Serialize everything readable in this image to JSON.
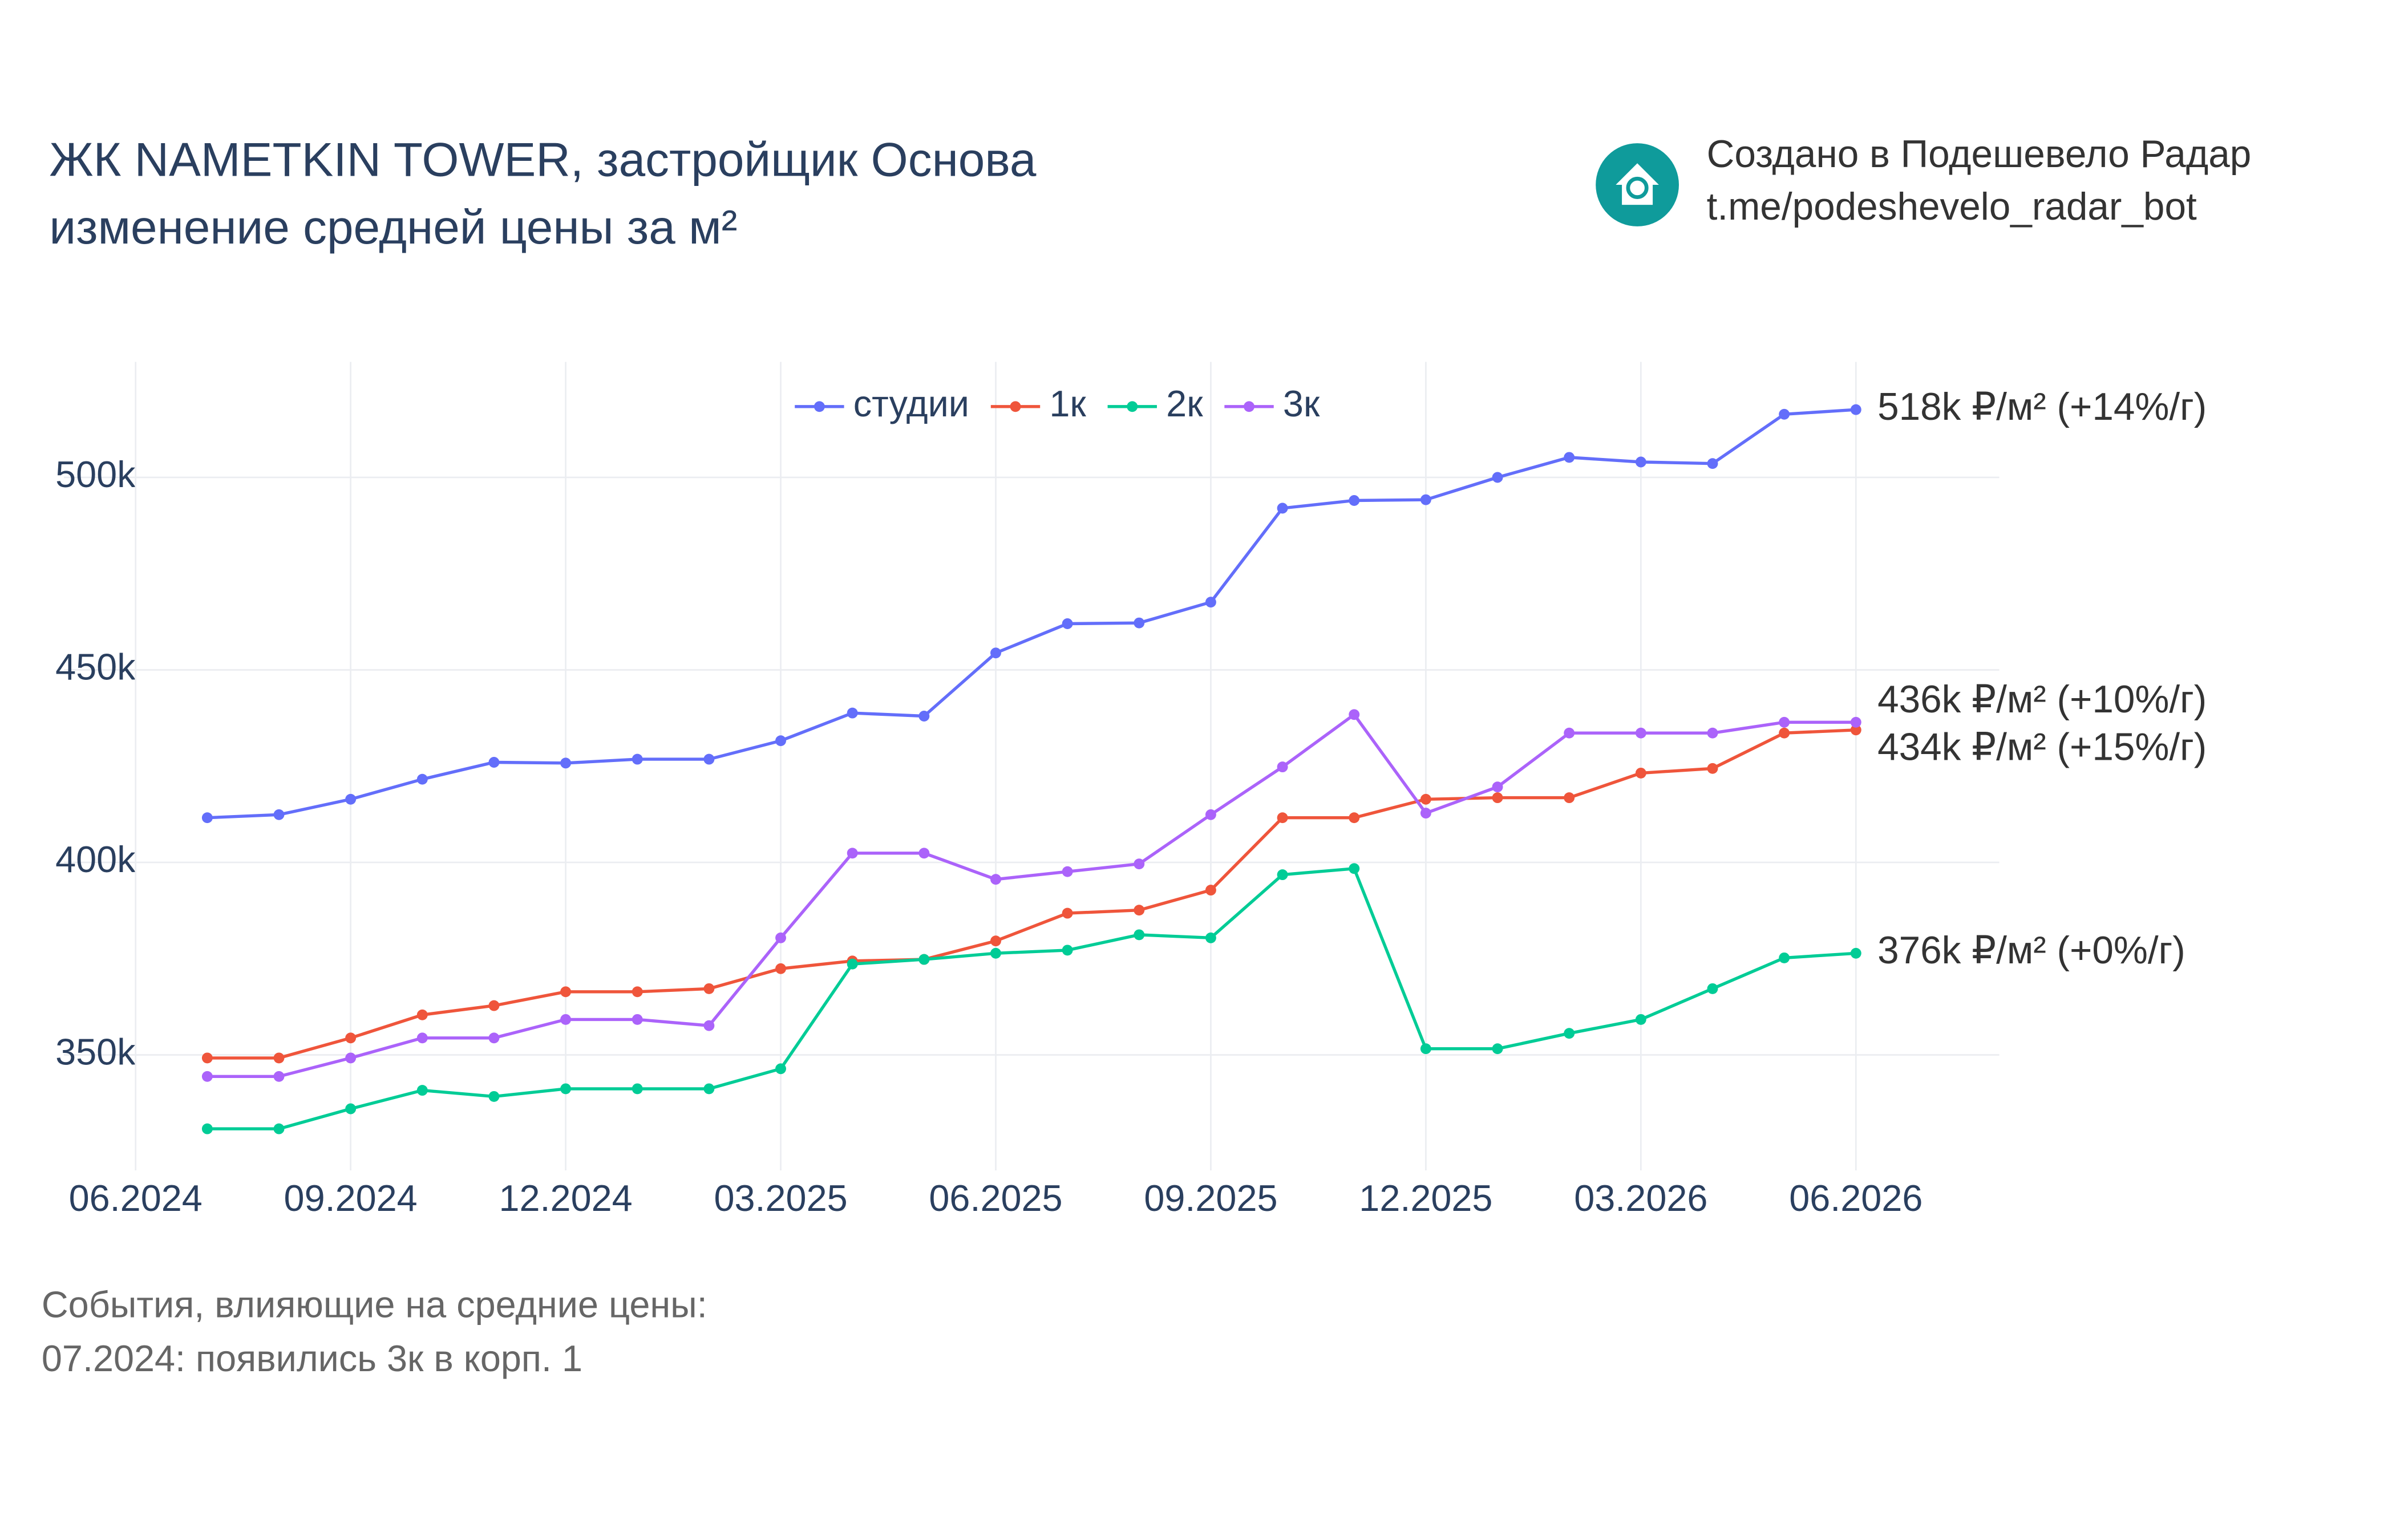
{
  "chart_data": {
    "type": "line",
    "title": "ЖК NAMETKIN TOWER, застройщик Основа",
    "subtitle": "изменение средней цены за м²",
    "credit": [
      "Создано в Подешевело Радар",
      "t.me/podeshevelo_radar_bot"
    ],
    "notes": [
      "События, влияющие на средние цены:",
      "07.2024: появились 3к в корп. 1"
    ],
    "x": [
      "07.2024",
      "08.2024",
      "09.2024",
      "10.2024",
      "11.2024",
      "12.2024",
      "01.2025",
      "02.2025",
      "03.2025",
      "04.2025",
      "05.2025",
      "06.2025",
      "07.2025",
      "08.2025",
      "09.2025",
      "10.2025",
      "11.2025",
      "12.2025",
      "01.2026",
      "02.2026",
      "03.2026",
      "04.2026",
      "05.2026",
      "06.2026"
    ],
    "xlim": [
      "05.2024",
      "08.2026"
    ],
    "xticks": [
      "06.2024",
      "09.2024",
      "12.2024",
      "03.2025",
      "06.2025",
      "09.2025",
      "12.2025",
      "03.2026",
      "06.2026"
    ],
    "ylim": [
      320000,
      530000
    ],
    "yticks": [
      {
        "value": 350000,
        "label": "350k"
      },
      {
        "value": 400000,
        "label": "400k"
      },
      {
        "value": 450000,
        "label": "450k"
      },
      {
        "value": 500000,
        "label": "500k"
      }
    ],
    "grid": true,
    "legend": "top",
    "series": [
      {
        "name": "студии",
        "color": "#636efa",
        "end_label": "518k ₽/м² (+14%/г)",
        "values": [
          411600,
          412400,
          416400,
          421600,
          426000,
          425800,
          426800,
          426800,
          431600,
          438800,
          438000,
          454400,
          462000,
          462200,
          467600,
          492000,
          494000,
          494200,
          500000,
          505200,
          504000,
          503600,
          516400,
          517600
        ]
      },
      {
        "name": "1к",
        "color": "#ef553b",
        "end_label": "434k ₽/м² (+15%/г)",
        "values": [
          349200,
          349200,
          354400,
          360400,
          362800,
          366400,
          366400,
          367200,
          372400,
          374400,
          374800,
          379600,
          386800,
          387600,
          392800,
          411600,
          411600,
          416400,
          416800,
          416800,
          423200,
          424400,
          433600,
          434400
        ]
      },
      {
        "name": "2к",
        "color": "#00cc96",
        "end_label": "376k ₽/м² (+0%/г)",
        "values": [
          330800,
          330800,
          336000,
          340800,
          339200,
          341200,
          341200,
          341200,
          346400,
          373600,
          374800,
          376400,
          377200,
          381200,
          380400,
          396800,
          398400,
          351600,
          351600,
          355600,
          359200,
          367200,
          375200,
          376400
        ]
      },
      {
        "name": "3к",
        "color": "#ab63fa",
        "end_label": "436k ₽/м² (+10%/г)",
        "values": [
          344400,
          344400,
          349200,
          354400,
          354400,
          359200,
          359200,
          357600,
          380400,
          402400,
          402400,
          395600,
          397600,
          399600,
          412400,
          424800,
          438400,
          412800,
          419600,
          433600,
          433600,
          433600,
          436400,
          436400
        ]
      }
    ]
  }
}
